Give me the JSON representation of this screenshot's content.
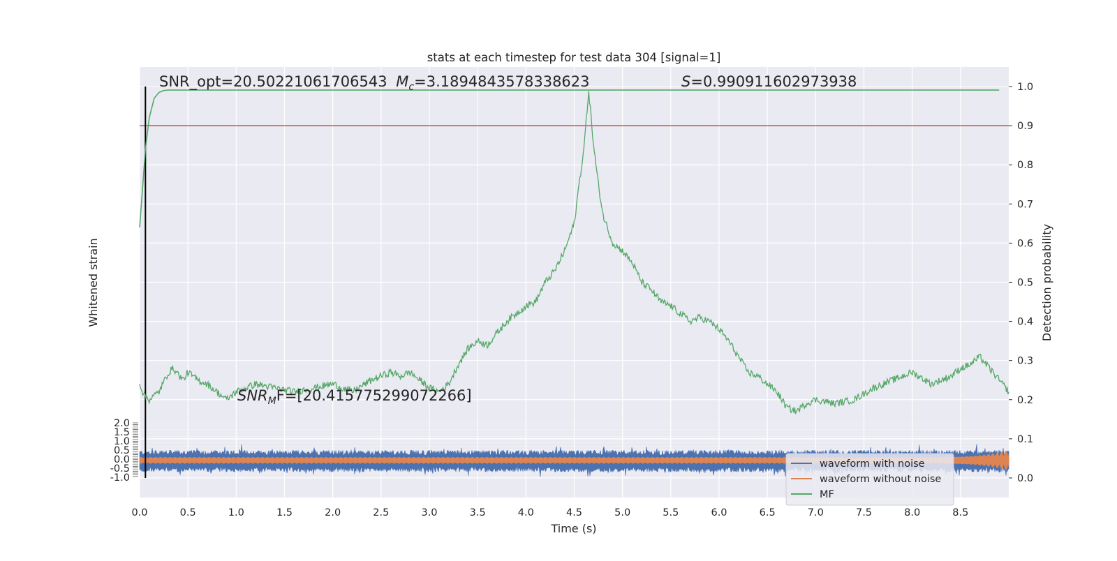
{
  "chart_data": {
    "type": "line",
    "title": "stats at each timestep for test data 304 [signal=1]",
    "xlabel": "Time (s)",
    "ylabel_left": "Whitened strain",
    "ylabel_right": "Detection probability",
    "xlim": [
      0.0,
      9.0
    ],
    "ylim_right": [
      -0.05,
      1.05
    ],
    "x_ticks": [
      "0.0",
      "0.5",
      "1.0",
      "1.5",
      "2.0",
      "2.5",
      "3.0",
      "3.5",
      "4.0",
      "4.5",
      "5.0",
      "5.5",
      "6.0",
      "6.5",
      "7.0",
      "7.5",
      "8.0",
      "8.5"
    ],
    "y_ticks_right": [
      "0.0",
      "0.1",
      "0.2",
      "0.3",
      "0.4",
      "0.5",
      "0.6",
      "0.7",
      "0.8",
      "0.9",
      "1.0"
    ],
    "y_ticks_left": [
      "2.0",
      "1.5",
      "1.0",
      "0.5",
      "0.0",
      "-0.5",
      "-1.0"
    ],
    "threshold": 0.9,
    "threshold_color": "#c44e52",
    "marker_time": 0.06,
    "annotations": {
      "snr_opt": "SNR_opt=20.50221061706543",
      "mc_label": "M",
      "mc_sub": "c",
      "mc_value": "=3.1894843578338623",
      "s_label": "S",
      "s_value": "=0.990911602973938",
      "snr_mf_label": "SNR",
      "snr_mf_sub": "M",
      "snr_mf_value": "F=[20.415775299072266]"
    },
    "series": [
      {
        "name": "waveform with noise",
        "color": "#4c72b0",
        "band_center": 0.043,
        "band_half_width": 0.028
      },
      {
        "name": "waveform without noise",
        "color": "#dd8452",
        "band_center": 0.045,
        "band_half_width": 0.008,
        "end_flare_half_width": 0.025
      },
      {
        "name": "MF",
        "color": "#55a868",
        "x": [
          0.0,
          0.03,
          0.06,
          0.1,
          0.15,
          0.2,
          0.25,
          0.3,
          0.35,
          0.4,
          0.5,
          0.6,
          0.7,
          1.0,
          1.5,
          2.0,
          3.0,
          4.0,
          4.3,
          4.5,
          4.6,
          4.65,
          4.7,
          4.8,
          5.0,
          6.0,
          7.0,
          8.0,
          8.5,
          8.9
        ],
        "y": [
          0.64,
          0.74,
          0.84,
          0.92,
          0.97,
          0.985,
          0.99,
          0.991,
          0.991,
          0.991,
          0.991,
          0.991,
          0.991,
          0.991,
          0.991,
          0.991,
          0.991,
          0.991,
          0.991,
          0.991,
          0.991,
          0.991,
          0.991,
          0.991,
          0.991,
          0.991,
          0.991,
          0.991,
          0.991,
          0.991
        ]
      },
      {
        "name": "",
        "color": "#55a868",
        "x": [
          0.0,
          0.05,
          0.1,
          0.2,
          0.3,
          0.35,
          0.45,
          0.5,
          0.6,
          0.7,
          0.8,
          0.9,
          1.0,
          1.2,
          1.4,
          1.6,
          1.8,
          2.0,
          2.2,
          2.4,
          2.6,
          2.7,
          2.8,
          3.0,
          3.1,
          3.2,
          3.3,
          3.4,
          3.5,
          3.6,
          3.7,
          3.8,
          3.9,
          4.0,
          4.1,
          4.2,
          4.3,
          4.4,
          4.5,
          4.55,
          4.6,
          4.65,
          4.7,
          4.75,
          4.8,
          4.9,
          5.0,
          5.1,
          5.2,
          5.3,
          5.4,
          5.5,
          5.6,
          5.7,
          5.8,
          5.9,
          6.0,
          6.1,
          6.2,
          6.3,
          6.4,
          6.5,
          6.6,
          6.7,
          6.8,
          6.9,
          7.0,
          7.2,
          7.4,
          7.6,
          7.8,
          8.0,
          8.2,
          8.4,
          8.5,
          8.6,
          8.7,
          8.8,
          9.0
        ],
        "y": [
          0.24,
          0.21,
          0.2,
          0.22,
          0.27,
          0.28,
          0.25,
          0.27,
          0.25,
          0.24,
          0.22,
          0.2,
          0.22,
          0.24,
          0.23,
          0.22,
          0.23,
          0.24,
          0.22,
          0.25,
          0.27,
          0.26,
          0.27,
          0.23,
          0.22,
          0.24,
          0.29,
          0.33,
          0.35,
          0.34,
          0.37,
          0.4,
          0.42,
          0.44,
          0.45,
          0.5,
          0.53,
          0.58,
          0.65,
          0.75,
          0.84,
          0.99,
          0.85,
          0.75,
          0.67,
          0.6,
          0.58,
          0.55,
          0.5,
          0.48,
          0.45,
          0.44,
          0.42,
          0.4,
          0.41,
          0.4,
          0.38,
          0.35,
          0.31,
          0.27,
          0.26,
          0.24,
          0.22,
          0.18,
          0.17,
          0.19,
          0.2,
          0.19,
          0.2,
          0.23,
          0.25,
          0.27,
          0.24,
          0.26,
          0.28,
          0.29,
          0.31,
          0.28,
          0.22
        ]
      }
    ],
    "grid": true,
    "legend_position": "lower-right"
  }
}
